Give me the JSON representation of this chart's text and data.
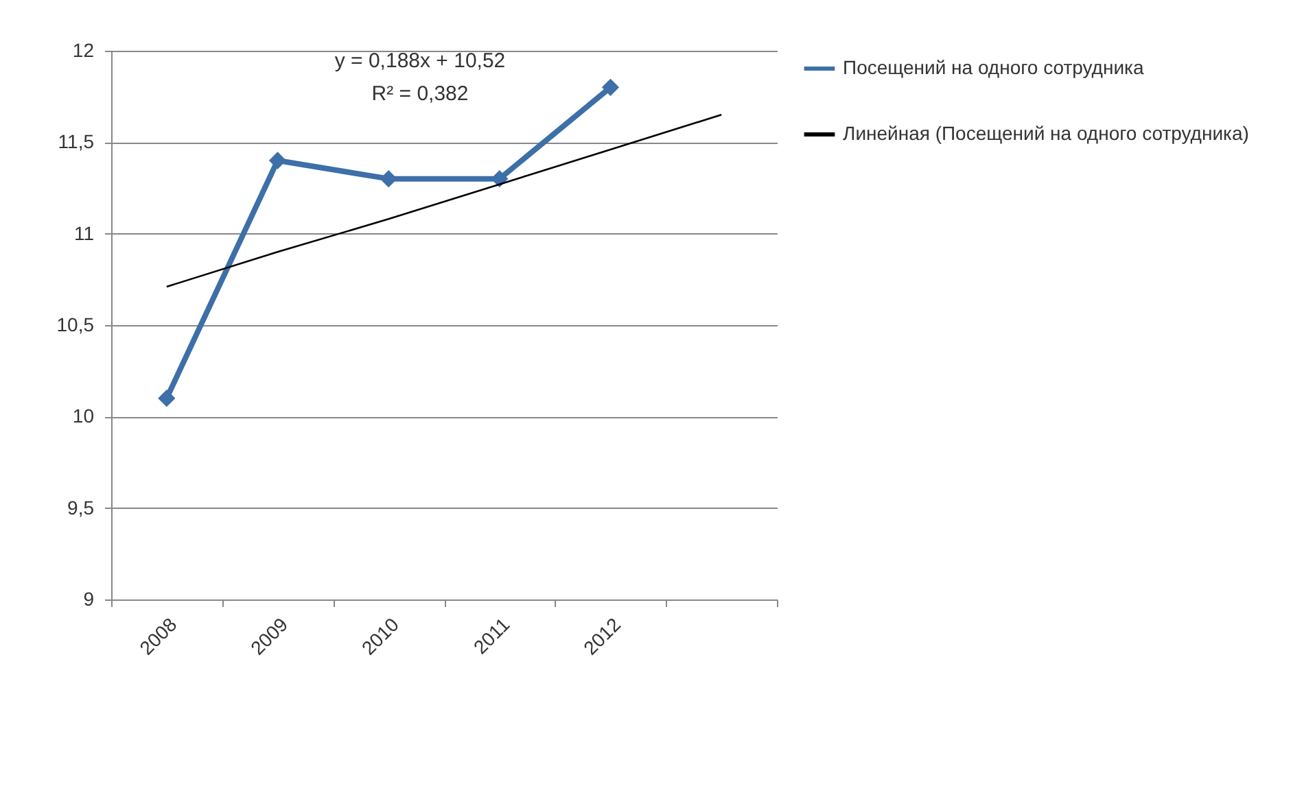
{
  "chart_data": {
    "type": "line",
    "categories": [
      "2008",
      "2009",
      "2010",
      "2011",
      "2012",
      null
    ],
    "series": [
      {
        "name": "Посещений на одного сотрудника",
        "color": "#3d6fa8",
        "values": [
          10.1,
          11.4,
          11.3,
          11.3,
          11.8,
          null
        ],
        "marker": "diamond"
      },
      {
        "name": "Линейная (Посещений на одного сотрудника)",
        "color": "#000000",
        "values": [
          10.71,
          10.9,
          11.08,
          11.27,
          11.46,
          11.65
        ],
        "marker": "none"
      }
    ],
    "ylim": [
      9,
      12
    ],
    "yticks": [
      9,
      {
        "value": 9.5,
        "label": "9,5"
      },
      10,
      {
        "value": 10.5,
        "label": "10,5"
      },
      11,
      {
        "value": 11.5,
        "label": "11,5"
      },
      12
    ],
    "grid": "y",
    "legend": "right",
    "annotations": [
      "y = 0,188x + 10,52",
      "R² = 0,382"
    ]
  }
}
